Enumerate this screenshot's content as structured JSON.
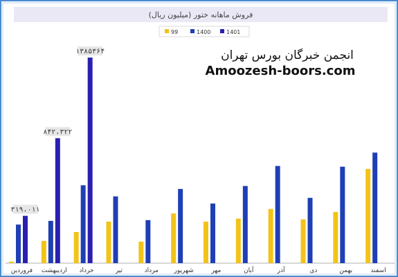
{
  "chart_data": {
    "type": "bar",
    "title": "فروش ماهانه ختور (میلیون ریال)",
    "categories": [
      "فروردین",
      "اردیبهشت",
      "خرداد",
      "تیر",
      "مرداد",
      "شهریور",
      "مهر",
      "آبان",
      "آذر",
      "دی",
      "بهمن",
      "اسفند"
    ],
    "series": [
      {
        "name": "99",
        "values": [
          10000,
          150000,
          210000,
          280000,
          145000,
          335000,
          280000,
          300000,
          365000,
          295000,
          345000,
          635000
        ]
      },
      {
        "name": "1400",
        "values": [
          260000,
          285000,
          525000,
          450000,
          290000,
          500000,
          402000,
          520000,
          655000,
          440000,
          650000,
          745000
        ]
      },
      {
        "name": "1401",
        "values": [
          319011,
          842322,
          1385364,
          null,
          null,
          null,
          null,
          null,
          null,
          null,
          null,
          null
        ]
      }
    ],
    "data_labels": [
      {
        "series": "1401",
        "category": "فروردین",
        "text": "۳۱۹،۰۱۱"
      },
      {
        "series": "1401",
        "category": "اردیبهشت",
        "text": "۸۴۲،۳۲۲"
      },
      {
        "series": "1401",
        "category": "خرداد",
        "text": "۱۳۸۵۳۶۴"
      }
    ],
    "ylim": [
      0,
      1400000
    ],
    "grid": false,
    "legend_position": "top-center",
    "colors": {
      "99": "#f2c318",
      "1400": "#1f3fb5",
      "1401": "#2a1fb0"
    }
  },
  "watermark": {
    "line1": "انجمن خبرگان بورس تهران",
    "line2": "Amoozesh-boors.com"
  }
}
